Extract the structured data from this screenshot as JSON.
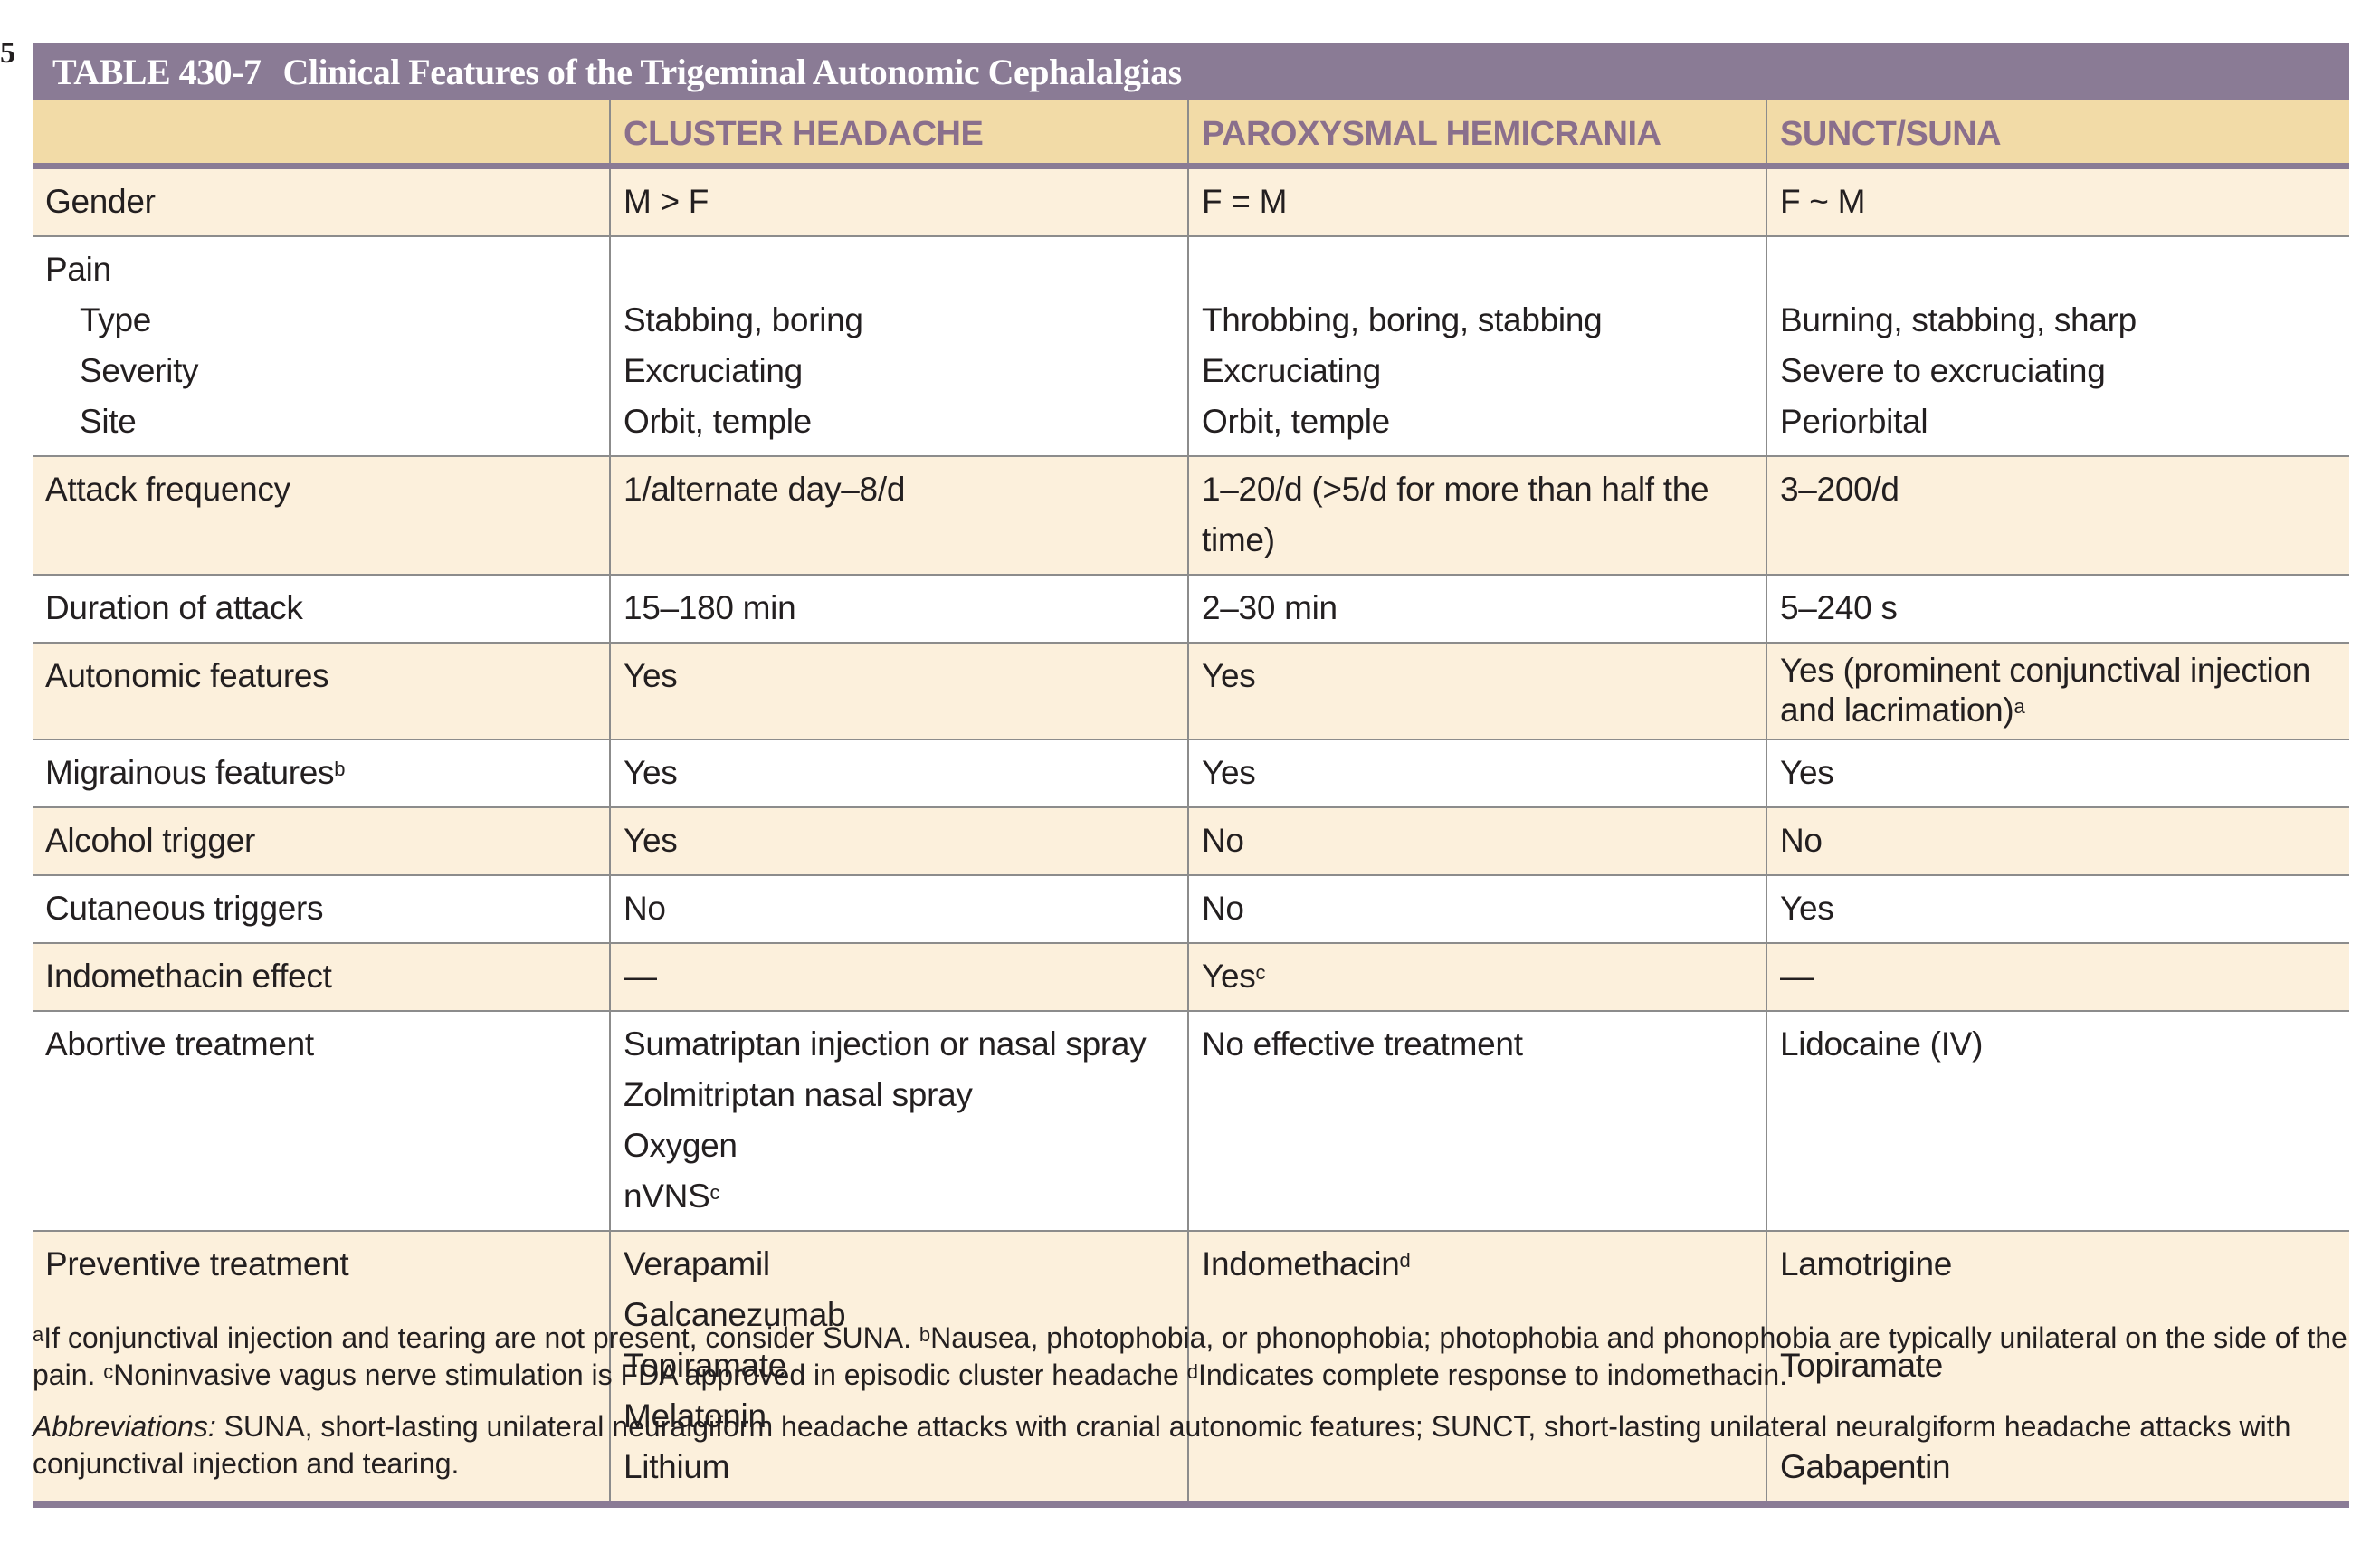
{
  "page_mark": "5",
  "table": {
    "number": "TABLE 430-7",
    "title": "Clinical Features of the Trigeminal Autonomic Cephalalgias",
    "columns": [
      "",
      "CLUSTER HEADACHE",
      "PAROXYSMAL HEMICRANIA",
      "SUNCT/SUNA"
    ],
    "gender": {
      "label": "Gender",
      "cluster": "M > F",
      "ph": "F = M",
      "sunct": "F ~ M"
    },
    "pain": {
      "label": "Pain",
      "type": {
        "label": "Type",
        "cluster": "Stabbing, boring",
        "ph": "Throbbing, boring, stabbing",
        "sunct": "Burning, stabbing, sharp"
      },
      "severity": {
        "label": "Severity",
        "cluster": "Excruciating",
        "ph": "Excruciating",
        "sunct": "Severe to excruciating"
      },
      "site": {
        "label": "Site",
        "cluster": "Orbit, temple",
        "ph": "Orbit, temple",
        "sunct": "Periorbital"
      }
    },
    "attack_frequency": {
      "label": "Attack frequency",
      "cluster": "1/alternate day–8/d",
      "ph": "1–20/d (>5/d for more than half the time)",
      "sunct": "3–200/d"
    },
    "duration": {
      "label": "Duration of attack",
      "cluster": "15–180 min",
      "ph": "2–30 min",
      "sunct": "5–240 s"
    },
    "autonomic": {
      "label": "Autonomic features",
      "cluster": "Yes",
      "ph": "Yes",
      "sunct_line1": "Yes (prominent conjunctival injection",
      "sunct_line2": "and lacrimation)",
      "sunct_sup": "a"
    },
    "migrainous": {
      "label": "Migrainous features",
      "label_sup": "b",
      "cluster": "Yes",
      "ph": "Yes",
      "sunct": "Yes"
    },
    "alcohol": {
      "label": "Alcohol trigger",
      "cluster": "Yes",
      "ph": "No",
      "sunct": "No"
    },
    "cutaneous": {
      "label": "Cutaneous triggers",
      "cluster": "No",
      "ph": "No",
      "sunct": "Yes"
    },
    "indomethacin": {
      "label": "Indomethacin effect",
      "cluster": "—",
      "ph": "Yes",
      "ph_sup": "c",
      "sunct": "—"
    },
    "abortive": {
      "label": "Abortive treatment",
      "cluster": [
        "Sumatriptan injection or nasal spray",
        "Zolmitriptan nasal spray",
        "Oxygen",
        "nVNS"
      ],
      "cluster_last_sup": "c",
      "ph": "No effective treatment",
      "sunct": "Lidocaine (IV)"
    },
    "preventive": {
      "label": "Preventive treatment",
      "cluster": [
        "Verapamil",
        "Galcanezumab",
        "Topiramate",
        "Melatonin",
        "Lithium"
      ],
      "ph": "Indomethacin",
      "ph_sup": "d",
      "sunct": [
        "Lamotrigine",
        "Topiramate",
        "Gabapentin"
      ]
    }
  },
  "footnotes": {
    "a_mark": "a",
    "a_text": "If conjunctival injection and tearing are not present, consider SUNA. ",
    "b_mark": "b",
    "b_text": "Nausea, photophobia, or phonophobia; photophobia and phonophobia are typically unilateral on the side of the pain. ",
    "c_mark": "c",
    "c_text": "Noninvasive vagus nerve stimulation is FDA approved in episodic cluster headache ",
    "d_mark": "d",
    "d_text": "Indicates complete response to indomethacin.",
    "abbrev_label": "Abbreviations:",
    "abbrev_text": " SUNA, short-lasting unilateral neuralgiform headache attacks with cranial autonomic features; SUNCT, short-lasting unilateral neuralgiform headache attacks with conjunctival injection and tearing."
  }
}
